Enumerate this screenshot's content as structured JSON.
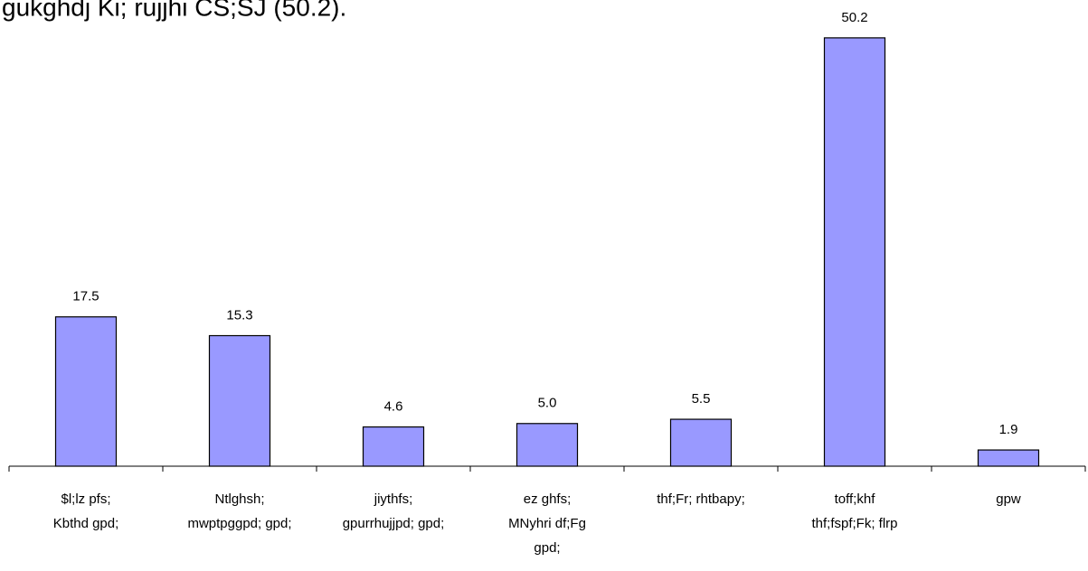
{
  "chart_data": {
    "type": "bar",
    "title": "gukghdj Ki; rujjhi CS;SJ (50.2).",
    "categories": [
      [
        "$l;lz pfs;",
        "Kbthd gpd;"
      ],
      [
        "Ntlghsh;",
        "mwptpggpd; gpd;"
      ],
      [
        "jiythfs;",
        "gpurrhujjpd; gpd;"
      ],
      [
        "ez ghfs;",
        "MNyhri df;Fg",
        "gpd;"
      ],
      [
        "thf;Fr; rhtbapy;"
      ],
      [
        "toff;khf",
        "thf;fspf;Fk; flrp"
      ],
      [
        "gpw"
      ]
    ],
    "values": [
      17.5,
      15.3,
      4.6,
      5.0,
      5.5,
      50.2,
      1.9
    ],
    "value_labels": [
      "17.5",
      "15.3",
      "4.6",
      "5.0",
      "5.5",
      "50.2",
      "1.9"
    ],
    "color": "#9999ff",
    "ylim": [
      0,
      54
    ]
  }
}
